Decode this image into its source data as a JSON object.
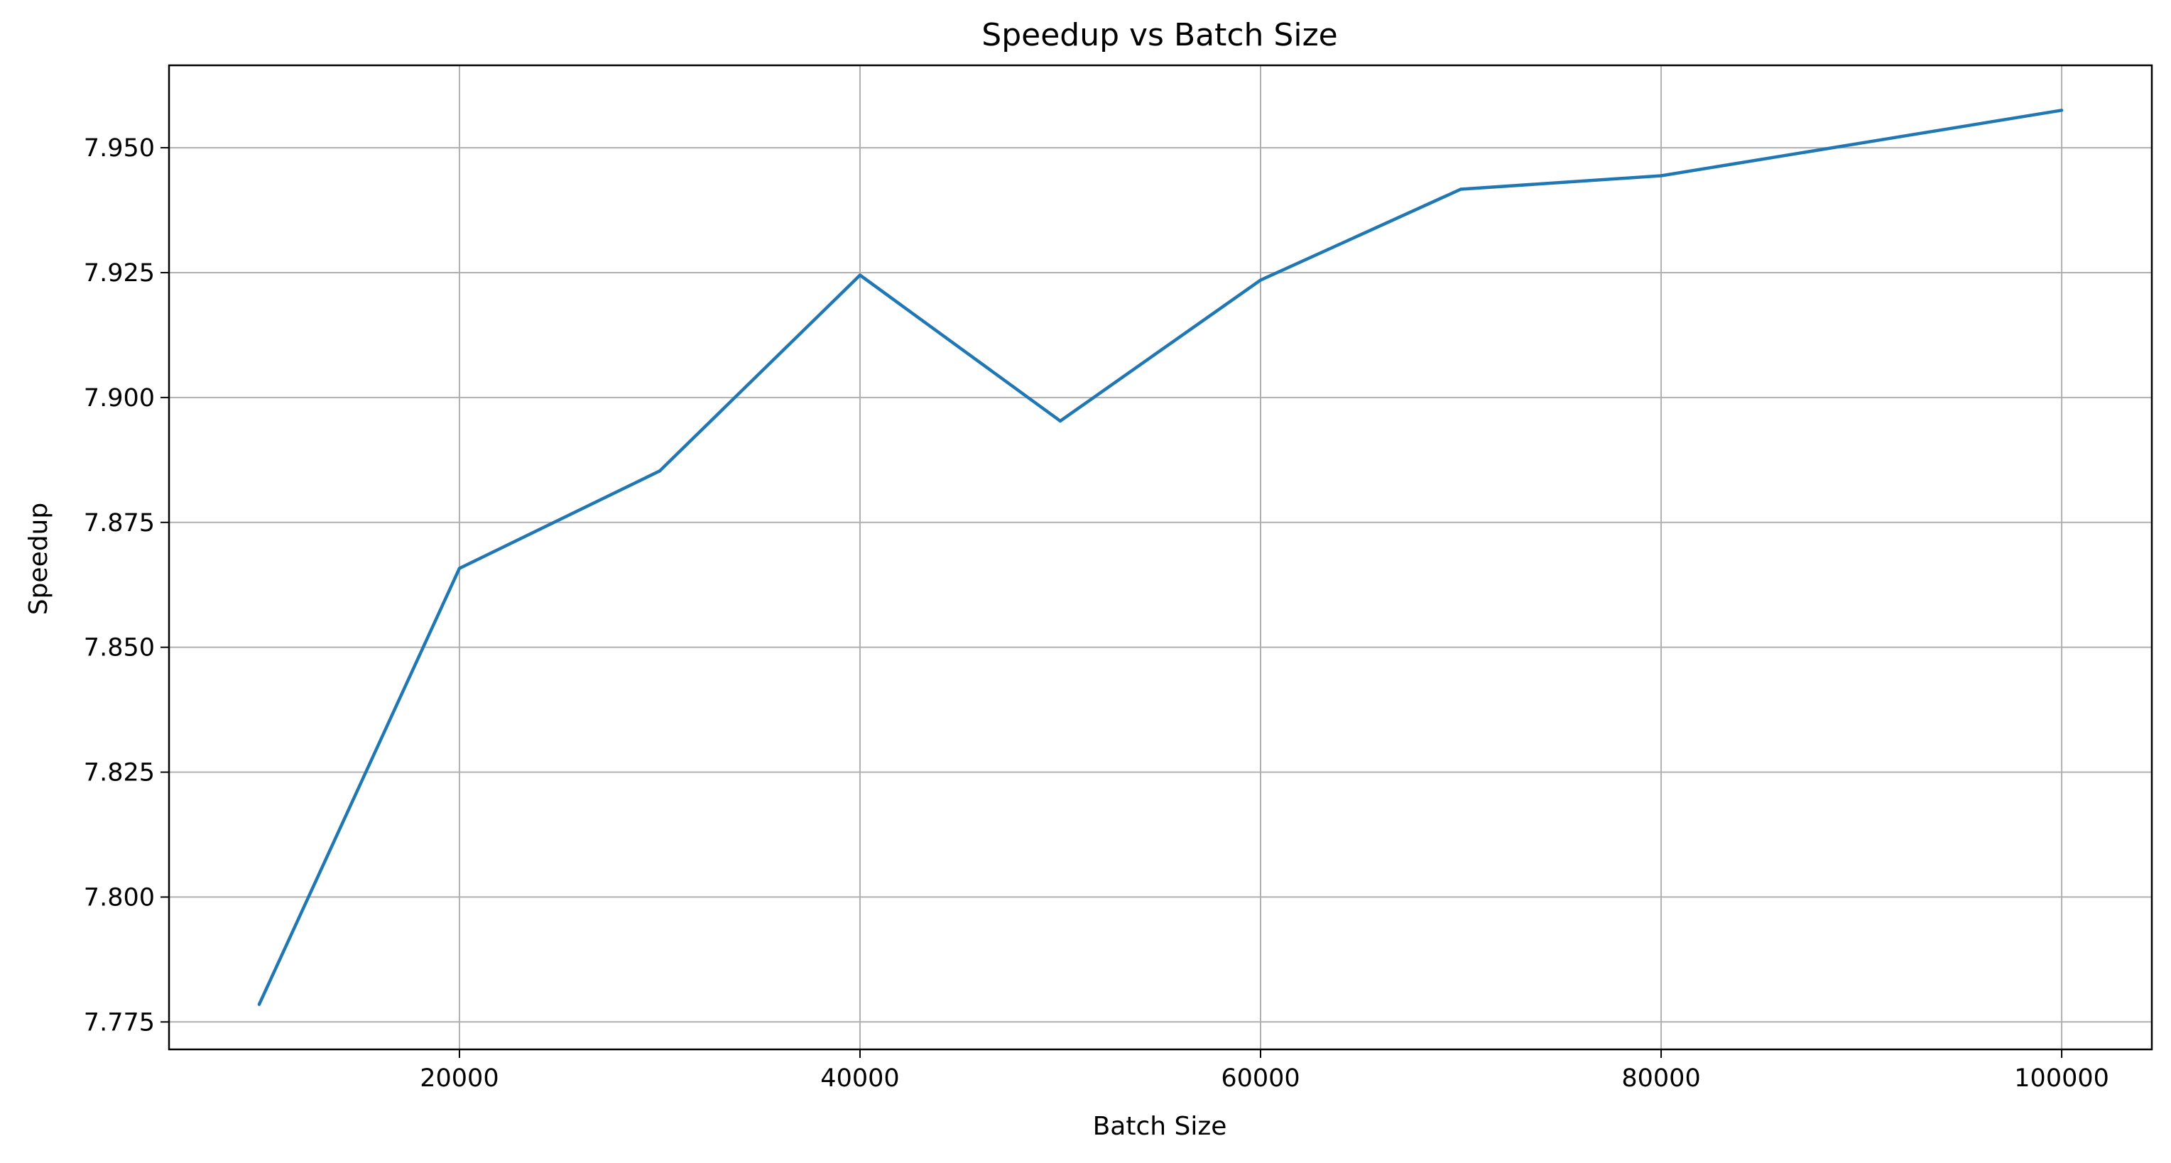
{
  "chart_data": {
    "type": "line",
    "title": "Speedup vs Batch Size",
    "xlabel": "Batch Size",
    "ylabel": "Speedup",
    "xlim": [
      5500,
      104500
    ],
    "ylim": [
      7.7695,
      7.9665
    ],
    "xticks": [
      20000,
      40000,
      60000,
      80000,
      100000
    ],
    "xtick_labels": [
      "20000",
      "40000",
      "60000",
      "80000",
      "100000"
    ],
    "yticks": [
      7.775,
      7.8,
      7.825,
      7.85,
      7.875,
      7.9,
      7.925,
      7.95
    ],
    "ytick_labels": [
      "7.775",
      "7.800",
      "7.825",
      "7.850",
      "7.875",
      "7.900",
      "7.925",
      "7.950"
    ],
    "grid": true,
    "series": [
      {
        "color": "#1f77b4",
        "x": [
          10000,
          20000,
          30000,
          40000,
          50000,
          60000,
          70000,
          80000,
          100000
        ],
        "y": [
          7.7785,
          7.8658,
          7.8853,
          7.9245,
          7.8953,
          7.9235,
          7.9417,
          7.9444,
          7.9575
        ]
      }
    ]
  }
}
